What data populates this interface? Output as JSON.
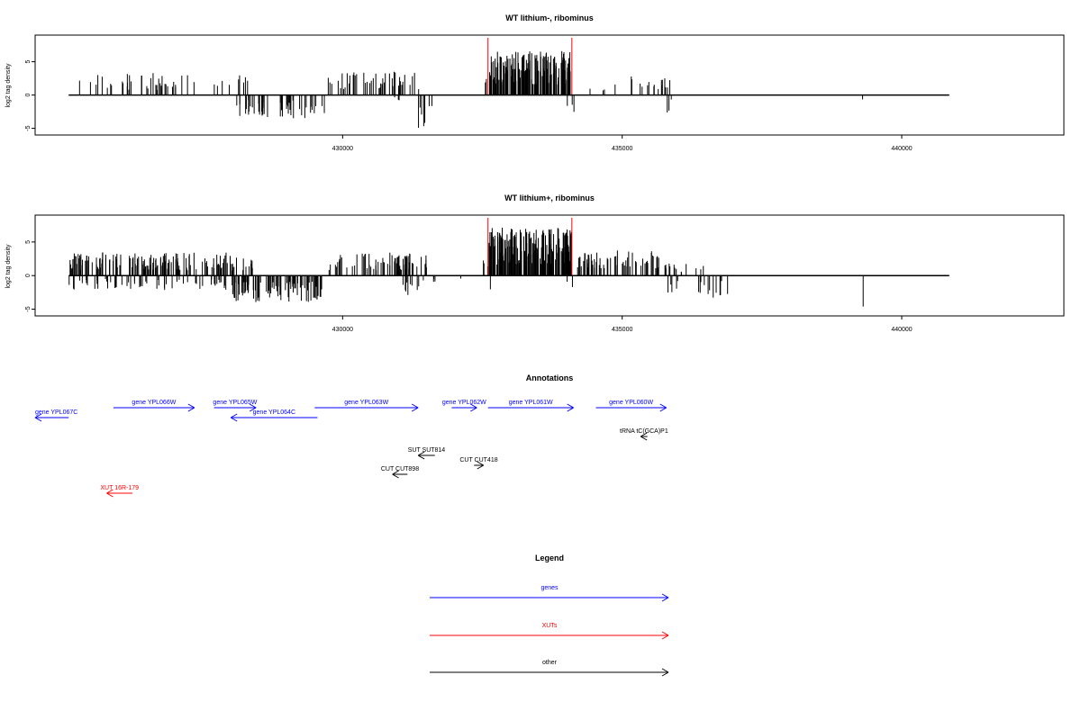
{
  "chart_data": [
    {
      "type": "bar",
      "title": "WT lithium-, ribominus",
      "ylabel": "log2 tag density",
      "xlim": [
        424500,
        442900
      ],
      "ylim": [
        -6,
        9
      ],
      "yticks": [
        "-5",
        "0",
        "5"
      ],
      "xticks": [
        "430000",
        "435000",
        "440000"
      ],
      "baseline_range": [
        425100,
        440850
      ],
      "red_markers": [
        432600,
        434100
      ],
      "segments": [
        {
          "start": 425250,
          "end": 427400,
          "sign": 1,
          "amp": 3.0,
          "count": 40
        },
        {
          "start": 427700,
          "end": 428000,
          "sign": 1,
          "amp": 2.0,
          "count": 4
        },
        {
          "start": 428100,
          "end": 428300,
          "sign": 1,
          "amp": 3.2,
          "count": 5
        },
        {
          "start": 428100,
          "end": 428800,
          "sign": -1,
          "amp": 3.0,
          "count": 22
        },
        {
          "start": 428800,
          "end": 429700,
          "sign": -1,
          "amp": 3.2,
          "count": 25
        },
        {
          "start": 429700,
          "end": 431400,
          "sign": 1,
          "amp": 3.2,
          "count": 45
        },
        {
          "start": 430850,
          "end": 431100,
          "sign": -1,
          "amp": 1.0,
          "count": 3
        },
        {
          "start": 431350,
          "end": 431500,
          "sign": -1,
          "amp": 4.5,
          "count": 6
        },
        {
          "start": 431500,
          "end": 431600,
          "sign": -1,
          "amp": 2.0,
          "count": 2
        },
        {
          "start": 432500,
          "end": 432600,
          "sign": 1,
          "amp": 2.8,
          "count": 2
        },
        {
          "start": 432620,
          "end": 434080,
          "sign": 1,
          "amp": 6.0,
          "count": 170
        },
        {
          "start": 433950,
          "end": 434150,
          "sign": -1,
          "amp": 2.8,
          "count": 3
        },
        {
          "start": 434300,
          "end": 435900,
          "sign": 1,
          "amp": 2.6,
          "count": 20
        },
        {
          "start": 435700,
          "end": 435900,
          "sign": -1,
          "amp": 2.6,
          "count": 3
        },
        {
          "start": 439300,
          "end": 439320,
          "sign": -1,
          "amp": 1.0,
          "count": 1
        }
      ]
    },
    {
      "type": "bar",
      "title": "WT lithium+, ribominus",
      "ylabel": "log2 tag density",
      "xlim": [
        424500,
        442900
      ],
      "ylim": [
        -6,
        9
      ],
      "yticks": [
        "-5",
        "0",
        "5"
      ],
      "xticks": [
        "430000",
        "435000",
        "440000"
      ],
      "baseline_range": [
        425100,
        440850
      ],
      "red_markers": [
        432600,
        434100
      ],
      "segments": [
        {
          "start": 425100,
          "end": 428000,
          "sign": 1,
          "amp": 3.2,
          "count": 150
        },
        {
          "start": 425100,
          "end": 428000,
          "sign": -1,
          "amp": 2.0,
          "count": 60
        },
        {
          "start": 428000,
          "end": 428400,
          "sign": 1,
          "amp": 2.5,
          "count": 15
        },
        {
          "start": 428000,
          "end": 429650,
          "sign": -1,
          "amp": 3.6,
          "count": 90
        },
        {
          "start": 429750,
          "end": 431500,
          "sign": 1,
          "amp": 3.2,
          "count": 70
        },
        {
          "start": 431000,
          "end": 431450,
          "sign": -1,
          "amp": 2.8,
          "count": 10
        },
        {
          "start": 431500,
          "end": 431700,
          "sign": -1,
          "amp": 1.6,
          "count": 3
        },
        {
          "start": 432100,
          "end": 432150,
          "sign": -1,
          "amp": 1.0,
          "count": 1
        },
        {
          "start": 432500,
          "end": 432600,
          "sign": 1,
          "amp": 2.5,
          "count": 3
        },
        {
          "start": 432600,
          "end": 434120,
          "sign": 1,
          "amp": 6.5,
          "count": 190
        },
        {
          "start": 432620,
          "end": 432680,
          "sign": -1,
          "amp": 3.0,
          "count": 1
        },
        {
          "start": 434000,
          "end": 434150,
          "sign": -1,
          "amp": 2.6,
          "count": 2
        },
        {
          "start": 434200,
          "end": 435800,
          "sign": 1,
          "amp": 3.4,
          "count": 65
        },
        {
          "start": 435800,
          "end": 436150,
          "sign": 1,
          "amp": 1.8,
          "count": 8
        },
        {
          "start": 435800,
          "end": 436000,
          "sign": -1,
          "amp": 2.6,
          "count": 5
        },
        {
          "start": 436300,
          "end": 436900,
          "sign": -1,
          "amp": 3.0,
          "count": 12
        },
        {
          "start": 436300,
          "end": 436700,
          "sign": 1,
          "amp": 1.6,
          "count": 3
        },
        {
          "start": 439300,
          "end": 439320,
          "sign": -1,
          "amp": 4.2,
          "count": 1
        }
      ]
    }
  ],
  "annotations": {
    "title": "Annotations",
    "items": [
      {
        "label": "gene YPL067C",
        "start": 425100,
        "end": 424500,
        "row": 2,
        "color": "#0000ff",
        "label_at": 424500
      },
      {
        "label": "gene YPL066W",
        "start": 425900,
        "end": 427350,
        "row": 1,
        "color": "#0000ff"
      },
      {
        "label": "gene YPL065W",
        "start": 427700,
        "end": 428450,
        "row": 1,
        "color": "#0000ff"
      },
      {
        "label": "gene YPL064C",
        "start": 429550,
        "end": 428000,
        "row": 2,
        "color": "#0000ff"
      },
      {
        "label": "gene YPL063W",
        "start": 429500,
        "end": 431350,
        "row": 1,
        "color": "#0000ff"
      },
      {
        "label": "gene YPL062W",
        "start": 431950,
        "end": 432400,
        "row": 1,
        "color": "#0000ff"
      },
      {
        "label": "gene YPL061W",
        "start": 432600,
        "end": 434130,
        "row": 1,
        "color": "#0000ff"
      },
      {
        "label": "gene YPL060W",
        "start": 434530,
        "end": 435790,
        "row": 1,
        "color": "#0000ff"
      },
      {
        "label": "tRNA tC(GCA)P1",
        "start": 435450,
        "end": 435330,
        "row": 3,
        "color": "#000000"
      },
      {
        "label": "SUT SUT814",
        "start": 431650,
        "end": 431350,
        "row": 4,
        "color": "#000000"
      },
      {
        "label": "CUT CUT418",
        "start": 432350,
        "end": 432520,
        "row": 5,
        "color": "#000000"
      },
      {
        "label": "CUT CUT898",
        "start": 431160,
        "end": 430890,
        "row": 6,
        "color": "#000000"
      },
      {
        "label": "XUT 16R-179",
        "start": 426240,
        "end": 425780,
        "row": 7,
        "color": "#ff0000"
      }
    ]
  },
  "legend": {
    "title": "Legend",
    "items": [
      {
        "label": "genes",
        "color": "#0000ff"
      },
      {
        "label": "XUTs",
        "color": "#ff0000"
      },
      {
        "label": "other",
        "color": "#000000"
      }
    ]
  }
}
